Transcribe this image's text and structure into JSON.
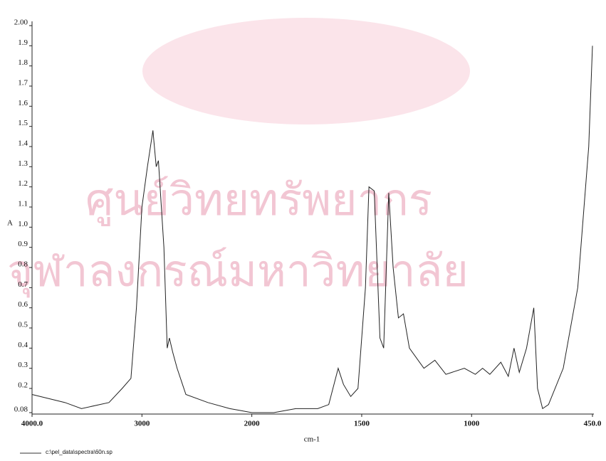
{
  "chart_data": {
    "type": "line",
    "x_label": "cm-1",
    "y_label": "A",
    "footer": "c:\\pel_data\\spectra\\60n.sp",
    "watermark": [
      "ศูนย์วิทยทรัพยากร",
      "จุฬาลงกรณ์มหาวิทยาลัย"
    ],
    "xlim": [
      4000,
      450
    ],
    "x_scale_break": 2000,
    "xticks": [
      {
        "value": 4000,
        "label": "4000.0"
      },
      3000,
      2000,
      1500,
      1000,
      {
        "value": 450,
        "label": "450.0"
      }
    ],
    "ylim": [
      0.08,
      2
    ],
    "yticks": [
      0.08,
      0.2,
      0.3,
      0.4,
      0.5,
      0.6,
      0.7,
      0.8,
      0.9,
      {
        "value": 1,
        "label": "1.0"
      },
      1.1,
      1.2,
      1.3,
      1.4,
      1.5,
      1.6,
      1.7,
      1.8,
      1.9,
      {
        "value": 2,
        "label": "2.00"
      }
    ],
    "grid": false,
    "series": [
      {
        "color": "#222222",
        "x": [
          4000,
          3700,
          3550,
          3300,
          3180,
          3100,
          3050,
          3000,
          2950,
          2900,
          2870,
          2850,
          2800,
          2770,
          2750,
          2720,
          2680,
          2600,
          2400,
          2200,
          2100,
          2000,
          1900,
          1800,
          1700,
          1650,
          1607,
          1583,
          1550,
          1517,
          1483,
          1467,
          1443,
          1417,
          1400,
          1377,
          1357,
          1333,
          1310,
          1283,
          1217,
          1167,
          1117,
          1033,
          983,
          950,
          917,
          867,
          833,
          807,
          783,
          750,
          717,
          700,
          677,
          650,
          583,
          517,
          467,
          450
        ],
        "values": [
          0.17,
          0.13,
          0.1,
          0.13,
          0.2,
          0.25,
          0.6,
          1.1,
          1.3,
          1.48,
          1.3,
          1.33,
          0.9,
          0.4,
          0.45,
          0.38,
          0.3,
          0.17,
          0.13,
          0.1,
          0.09,
          0.08,
          0.08,
          0.1,
          0.1,
          0.12,
          0.3,
          0.22,
          0.16,
          0.2,
          0.7,
          1.2,
          1.18,
          0.45,
          0.4,
          1.17,
          0.8,
          0.55,
          0.57,
          0.4,
          0.3,
          0.34,
          0.27,
          0.3,
          0.27,
          0.3,
          0.27,
          0.33,
          0.26,
          0.4,
          0.28,
          0.4,
          0.6,
          0.2,
          0.1,
          0.12,
          0.3,
          0.7,
          1.4,
          1.9
        ]
      }
    ]
  }
}
